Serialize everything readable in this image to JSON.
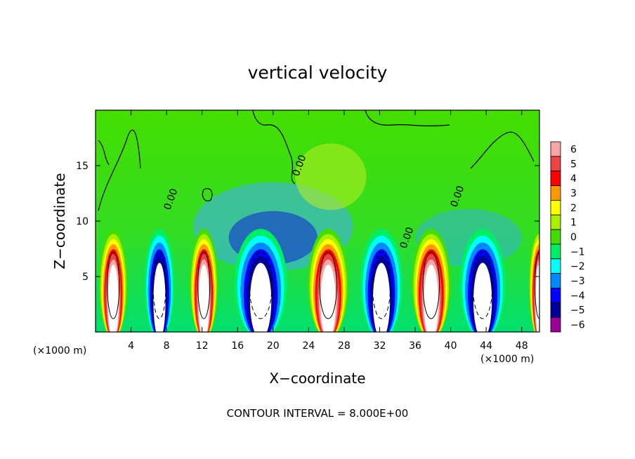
{
  "chart_data": {
    "type": "heatmap",
    "title": "vertical velocity",
    "xlabel": "X−coordinate",
    "ylabel": "Z−coordinate",
    "x_unit_label_left": "(×1000 m)",
    "x_unit_label_right": "(×1000 m)",
    "xlim": [
      0,
      50
    ],
    "ylim": [
      0,
      20
    ],
    "x_ticks": [
      4,
      8,
      12,
      16,
      20,
      24,
      28,
      32,
      36,
      40,
      44,
      48
    ],
    "y_ticks": [
      5,
      10,
      15
    ],
    "footnote": "CONTOUR INTERVAL = 8.000E+00",
    "contour_label": "0.00",
    "colorbar": {
      "levels": [
        6,
        5,
        4,
        3,
        2,
        1,
        0,
        -1,
        -2,
        -3,
        -4,
        -5,
        -6
      ],
      "labels": [
        "6",
        "5",
        "4",
        "3",
        "2",
        "1",
        "0",
        "−1",
        "−2",
        "−3",
        "−4",
        "−5",
        "−6"
      ],
      "colors": [
        "#f7a6a6",
        "#ee4444",
        "#ff0000",
        "#ff9900",
        "#ffff00",
        "#aaee00",
        "#44dd00",
        "#00ee66",
        "#00ffff",
        "#0088ff",
        "#0000ff",
        "#000099",
        "#990099"
      ]
    },
    "cells": [
      {
        "x": 2,
        "half_width": 1.6,
        "sign": 1
      },
      {
        "x": 7.2,
        "half_width": 1.7,
        "sign": -1
      },
      {
        "x": 12.2,
        "half_width": 1.6,
        "sign": 1
      },
      {
        "x": 18.6,
        "half_width": 3.0,
        "sign": -1
      },
      {
        "x": 26.2,
        "half_width": 2.3,
        "sign": 1
      },
      {
        "x": 32.2,
        "half_width": 2.4,
        "sign": -1
      },
      {
        "x": 37.8,
        "half_width": 2.2,
        "sign": 1
      },
      {
        "x": 43.6,
        "half_width": 2.6,
        "sign": -1
      },
      {
        "x": 50,
        "half_width": 1.2,
        "sign": 1
      }
    ]
  }
}
